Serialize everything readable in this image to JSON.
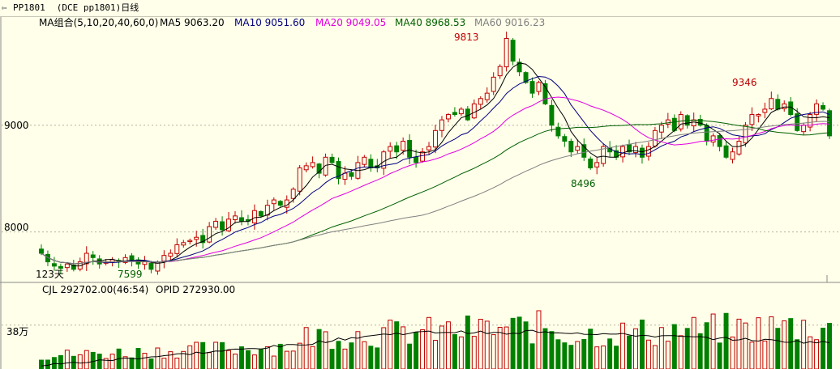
{
  "window": {
    "symbol": "PP1801",
    "title": "(DCE pp1801)日线"
  },
  "colors": {
    "background": "#ffffea",
    "up": "#c00000",
    "down": "#008000",
    "ma5": "#000000",
    "ma10": "#000080",
    "ma20": "#e000e0",
    "ma40": "#006000",
    "ma60": "#808080",
    "grid": "#b4b4a0"
  },
  "chart_data": {
    "type": "candlestick",
    "price_axis": {
      "ticks": [
        8000,
        9000
      ],
      "tick_labels": [
        "8000",
        "9000"
      ],
      "range": [
        7550,
        9900
      ]
    },
    "volume_axis": {
      "ticks": [
        380000
      ],
      "tick_labels": [
        "38万"
      ],
      "range": [
        0,
        630000
      ]
    },
    "legend": {
      "group": "MA组合(5,10,20,40,60,0)",
      "ma5": "MA5 9063.20",
      "ma10": "MA10 9051.60",
      "ma20": "MA20 9049.05",
      "ma40": "MA40 8968.53",
      "ma60": "MA60 9016.23"
    },
    "volume_legend": {
      "cjl": "CJL  292702.00(46:54)",
      "opid": "OPID   272930.00"
    },
    "annotations": {
      "high": "9813",
      "low_left": "7599",
      "low_mid": "8496",
      "local_high": "9346",
      "days": "123天"
    },
    "closes": [
      7800,
      7720,
      7680,
      7660,
      7700,
      7650,
      7720,
      7800,
      7760,
      7700,
      7720,
      7740,
      7720,
      7760,
      7740,
      7700,
      7720,
      7650,
      7720,
      7780,
      7800,
      7880,
      7900,
      7920,
      7950,
      7900,
      8050,
      8100,
      8020,
      8120,
      8150,
      8100,
      8100,
      8200,
      8150,
      8250,
      8300,
      8250,
      8300,
      8400,
      8600,
      8620,
      8650,
      8550,
      8700,
      8650,
      8500,
      8550,
      8520,
      8650,
      8700,
      8600,
      8600,
      8750,
      8800,
      8750,
      8850,
      8700,
      8650,
      8750,
      8800,
      8950,
      9050,
      9100,
      9100,
      9150,
      9050,
      9200,
      9250,
      9300,
      9450,
      9550,
      9813,
      9600,
      9500,
      9400,
      9300,
      9400,
      9200,
      9000,
      8900,
      8850,
      8750,
      8800,
      8700,
      8600,
      8650,
      8800,
      8750,
      8700,
      8800,
      8750,
      8800,
      8700,
      8800,
      8950,
      9000,
      9050,
      8950,
      9100,
      9000,
      9050,
      9000,
      8850,
      8900,
      8800,
      8700,
      8750,
      8850,
      9000,
      9100,
      9100,
      9150,
      9250,
      9150,
      9200,
      9100,
      8950,
      9000,
      9100,
      9200,
      9150,
      8900
    ]
  }
}
